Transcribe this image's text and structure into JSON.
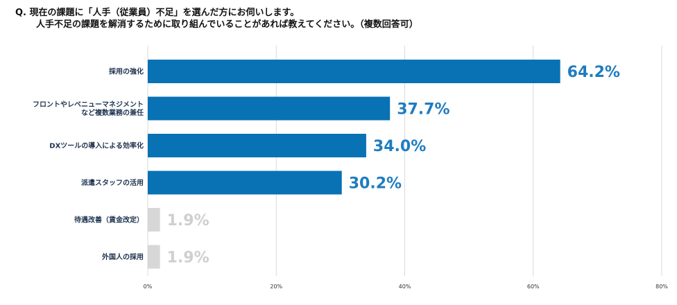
{
  "question": {
    "prefix": "Q.",
    "line1": "現在の課題に「人手（従業員）不足」を選んだ方にお伺いします。",
    "line2": "人手不足の課題を解消するために取り組んでいることがあれば教えてください。（複数回答可）"
  },
  "colors": {
    "primary_bar": "#0872b4",
    "muted_bar": "#d7d7d7",
    "primary_text": "#1f7cc0",
    "muted_text": "#cfcfcf",
    "grid": "#d9d9d9"
  },
  "chart_data": {
    "type": "bar",
    "orientation": "horizontal",
    "categories": [
      [
        "採用の強化"
      ],
      [
        "フロントやレベニューマネジメント",
        "など複数業務の兼任"
      ],
      [
        "DXツールの導入による効率化"
      ],
      [
        "派遣スタッフの活用"
      ],
      [
        "待遇改善（賃金改定）"
      ],
      [
        "外国人の採用"
      ]
    ],
    "values": [
      64.2,
      37.7,
      34.0,
      30.2,
      1.9,
      1.9
    ],
    "value_labels": [
      "64.2%",
      "37.7%",
      "34.0%",
      "30.2%",
      "1.9%",
      "1.9%"
    ],
    "highlight": [
      true,
      true,
      true,
      true,
      false,
      false
    ],
    "xlim": [
      0,
      80
    ],
    "xticks": [
      0,
      20,
      40,
      60,
      80
    ],
    "xtick_labels": [
      "0%",
      "20%",
      "40%",
      "60%",
      "80%"
    ],
    "grid": true
  }
}
